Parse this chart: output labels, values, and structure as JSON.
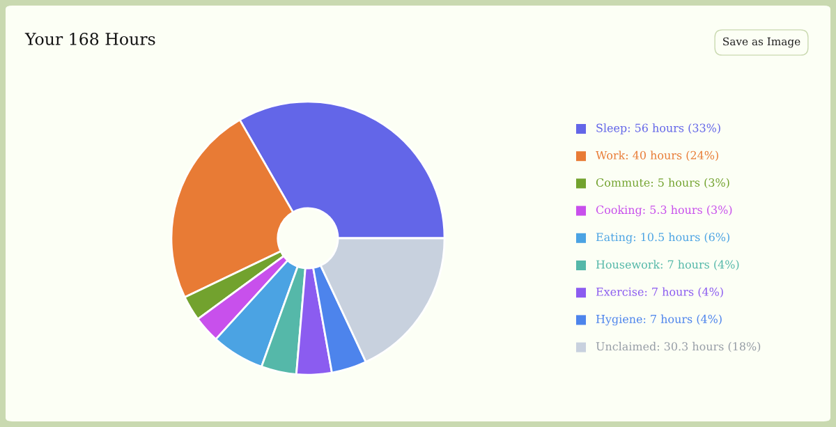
{
  "chart_data": {
    "type": "donut",
    "title": "Your 168 Hours",
    "categories": [
      "Sleep: 56 hours (33%)",
      "Work: 40 hours (24%)",
      "Commute: 5 hours (3%)",
      "Cooking: 5.3 hours (3%)",
      "Eating: 10.5 hours (6%)",
      "Housework: 7 hours (4%)",
      "Exercise: 7 hours (4%)",
      "Hygiene: 7 hours (4%)",
      "Unclaimed: 30.3 hours (18%)"
    ],
    "values": [
      56,
      40,
      5,
      5.3,
      10.5,
      7,
      7,
      7,
      30.3
    ],
    "colors": [
      "#6366e8",
      "#e87b35",
      "#72a22e",
      "#c850ec",
      "#4ba3e3",
      "#55b8a9",
      "#8b5cf0",
      "#4d84ec",
      "#c8d1de"
    ],
    "legend": "right",
    "annotations": [
      "Save as Image"
    ]
  }
}
